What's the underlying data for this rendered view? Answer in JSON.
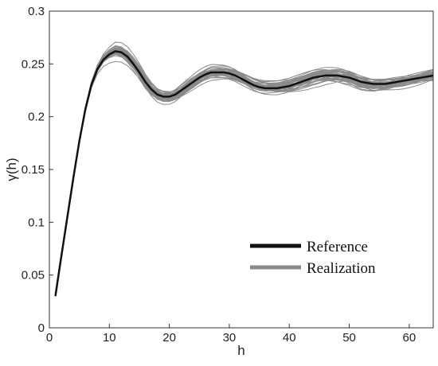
{
  "chart_data": {
    "type": "line",
    "xlabel": "h",
    "ylabel": "γ(h)",
    "xlim": [
      0,
      64
    ],
    "ylim": [
      0,
      0.3
    ],
    "xticks": [
      "0",
      "10",
      "20",
      "30",
      "40",
      "50",
      "60"
    ],
    "yticks": [
      "0",
      "0.05",
      "0.1",
      "0.15",
      "0.2",
      "0.25",
      "0.3"
    ],
    "grid": false,
    "legend_position": "bottom-right",
    "reference": {
      "name": "Reference",
      "color": "#111111",
      "x": [
        1,
        2,
        3,
        4,
        5,
        6,
        7,
        8,
        9,
        10,
        11,
        12,
        13,
        14,
        15,
        16,
        17,
        18,
        19,
        20,
        21,
        22,
        23,
        24,
        25,
        26,
        27,
        28,
        29,
        30,
        31,
        32,
        33,
        34,
        35,
        36,
        37,
        38,
        39,
        40,
        41,
        42,
        43,
        44,
        45,
        46,
        47,
        48,
        49,
        50,
        51,
        52,
        53,
        54,
        55,
        56,
        57,
        58,
        59,
        60,
        61,
        62,
        63,
        64
      ],
      "y": [
        0.03,
        0.068,
        0.105,
        0.142,
        0.177,
        0.207,
        0.23,
        0.245,
        0.254,
        0.259,
        0.262,
        0.261,
        0.257,
        0.25,
        0.242,
        0.233,
        0.226,
        0.221,
        0.219,
        0.219,
        0.221,
        0.225,
        0.229,
        0.233,
        0.237,
        0.24,
        0.242,
        0.242,
        0.242,
        0.241,
        0.239,
        0.236,
        0.233,
        0.23,
        0.228,
        0.227,
        0.227,
        0.227,
        0.228,
        0.229,
        0.231,
        0.233,
        0.235,
        0.237,
        0.238,
        0.239,
        0.239,
        0.239,
        0.238,
        0.237,
        0.235,
        0.233,
        0.232,
        0.231,
        0.231,
        0.231,
        0.232,
        0.233,
        0.234,
        0.235,
        0.236,
        0.237,
        0.238,
        0.239
      ]
    },
    "realization": {
      "name": "Realization",
      "color": "#8a8a8a",
      "count": 40
    }
  }
}
